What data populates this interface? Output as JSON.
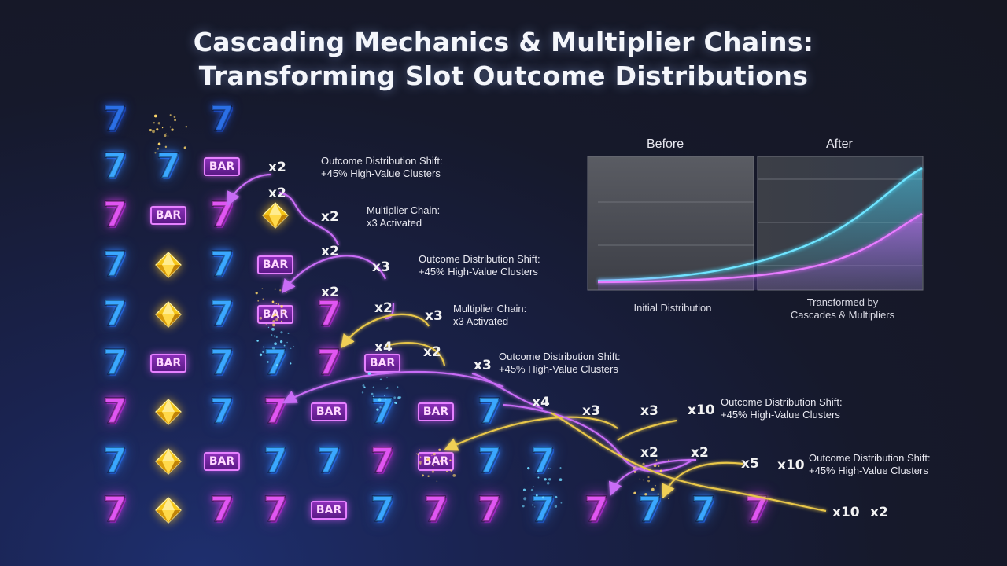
{
  "title": {
    "line1": "Cascading Mechanics & Multiplier Chains:",
    "line2": "Transforming Slot Outcome Distributions"
  },
  "symbols": {
    "seven": "7",
    "bar": "BAR",
    "gem_icon": "yellow-diamond-gem-icon",
    "colors": {
      "blue": "#3aa7ff",
      "magenta": "#e055f2",
      "gem": "#f5c518",
      "gold_arrow": "#e8c64a",
      "purple_arrow": "#c060f0"
    }
  },
  "multipliers": [
    "x2",
    "x2",
    "x2",
    "x2",
    "x3",
    "x2",
    "x2",
    "x3",
    "x4",
    "x2",
    "x3",
    "x4",
    "x3",
    "x3",
    "x10",
    "x2",
    "x2",
    "x5",
    "x10",
    "x10",
    "x2"
  ],
  "annotations": [
    {
      "line1": "Outcome Distribution Shift:",
      "line2": "+45% High-Value Clusters"
    },
    {
      "line1": "Multiplier Chain:",
      "line2": "x3 Activated"
    },
    {
      "line1": "Outcome Distribution Shift:",
      "line2": "+45% High-Value Clusters"
    },
    {
      "line1": "Multiplier Chain:",
      "line2": "x3 Activated"
    },
    {
      "line1": "Outcome Distribution Shift:",
      "line2": "+45% High-Value Clusters"
    },
    {
      "line1": "Outcome Distribution Shift:",
      "line2": "+45% High-Value Clusters"
    },
    {
      "line1": "Outcome Distribution Shift:",
      "line2": "+45% High-Value Clusters"
    }
  ],
  "comparison": {
    "before": {
      "header": "Before",
      "caption": "Initial Distribution"
    },
    "after": {
      "header": "After",
      "caption_line1": "Transformed by",
      "caption_line2": "Cascades & Multipliers"
    }
  }
}
